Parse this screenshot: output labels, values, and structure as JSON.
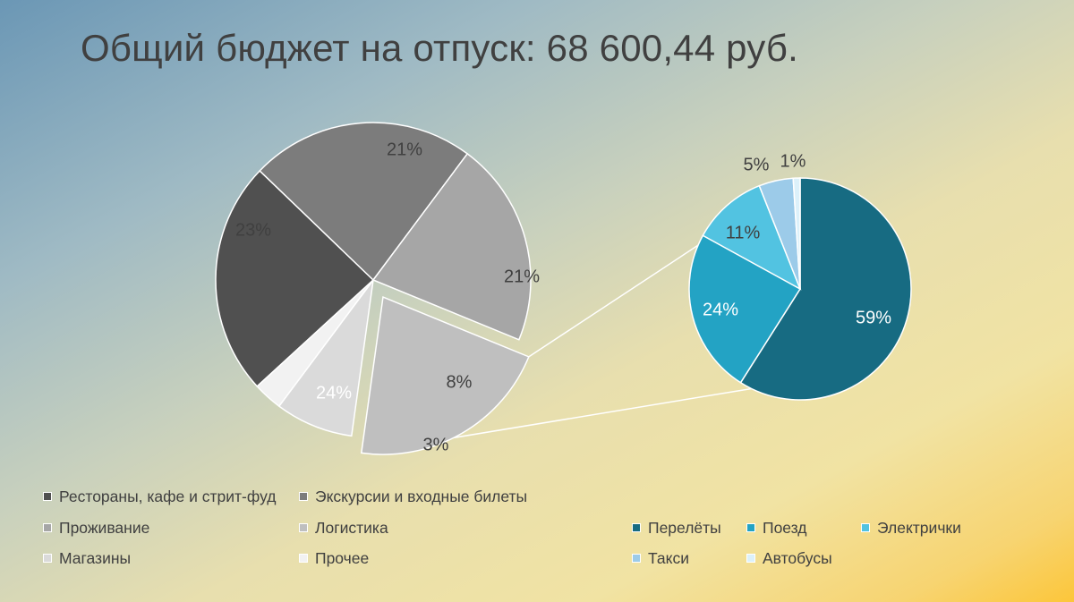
{
  "title": "Общий бюджет на отпуск: 68 600,44 руб.",
  "chart_data": {
    "type": "pie-of-pie",
    "main": {
      "series": [
        {
          "name": "Рестораны, кафе и стрит-фуд",
          "value": 24,
          "label": "24%",
          "color": "#505050"
        },
        {
          "name": "Экскурсии и входные билеты",
          "value": 23,
          "label": "23%",
          "color": "#7c7c7c"
        },
        {
          "name": "Проживание",
          "value": 21,
          "label": "21%",
          "color": "#a6a6a6"
        },
        {
          "name": "Логистика",
          "value": 21,
          "label": "21%",
          "color": "#bfbfbf",
          "exploded": true
        },
        {
          "name": "Магазины",
          "value": 8,
          "label": "8%",
          "color": "#dadada"
        },
        {
          "name": "Прочее",
          "value": 3,
          "label": "3%",
          "color": "#f2f2f2"
        }
      ]
    },
    "breakdown": {
      "of": "Логистика",
      "series": [
        {
          "name": "Перелёты",
          "value": 59,
          "label": "59%",
          "color": "#176b82"
        },
        {
          "name": "Поезд",
          "value": 24,
          "label": "24%",
          "color": "#23a3c4"
        },
        {
          "name": "Электрички",
          "value": 11,
          "label": "11%",
          "color": "#52c3e1"
        },
        {
          "name": "Такси",
          "value": 5,
          "label": "5%",
          "color": "#9ccbe9"
        },
        {
          "name": "Автобусы",
          "value": 1,
          "label": "1%",
          "color": "#dcf1fa"
        }
      ]
    },
    "legend": {
      "position": "bottom"
    }
  }
}
